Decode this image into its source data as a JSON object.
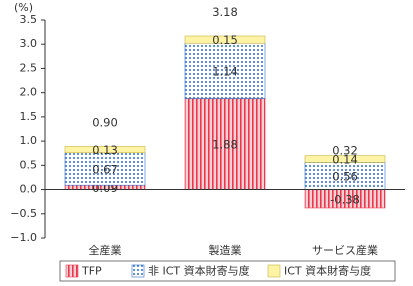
{
  "chart_data": {
    "type": "stacked-bar",
    "y_unit": "(%)",
    "categories": [
      "全産業",
      "製造業",
      "サービス産業"
    ],
    "series": [
      {
        "name": "TFP",
        "color": "#e8384f",
        "pattern": "stripes",
        "values": [
          0.09,
          1.88,
          -0.38
        ]
      },
      {
        "name": "非 ICT 資本財寄与度",
        "color": "#2f6fc7",
        "pattern": "dots",
        "values": [
          0.67,
          1.14,
          0.56
        ]
      },
      {
        "name": "ICT 資本財寄与度",
        "color": "#fff3a6",
        "pattern": "solid",
        "values": [
          0.13,
          0.15,
          0.14
        ]
      }
    ],
    "totals": [
      0.9,
      3.18,
      0.32
    ],
    "totals_labels": [
      "0.90",
      "3.18",
      "0.32"
    ],
    "ylim": [
      -1.0,
      3.5
    ],
    "yticks": [
      {
        "value": -1.0,
        "label": "−1.0"
      },
      {
        "value": -0.5,
        "label": "−0.5"
      },
      {
        "value": 0,
        "label": "0.0"
      },
      {
        "value": 0.5,
        "label": "0.5"
      },
      {
        "value": 1.0,
        "label": "1.0"
      },
      {
        "value": 1.5,
        "label": "1.5"
      },
      {
        "value": 2.0,
        "label": "2.0"
      },
      {
        "value": 2.5,
        "label": "2.5"
      },
      {
        "value": 3.0,
        "label": "3.0"
      },
      {
        "value": 3.5,
        "label": "3.5"
      }
    ]
  }
}
